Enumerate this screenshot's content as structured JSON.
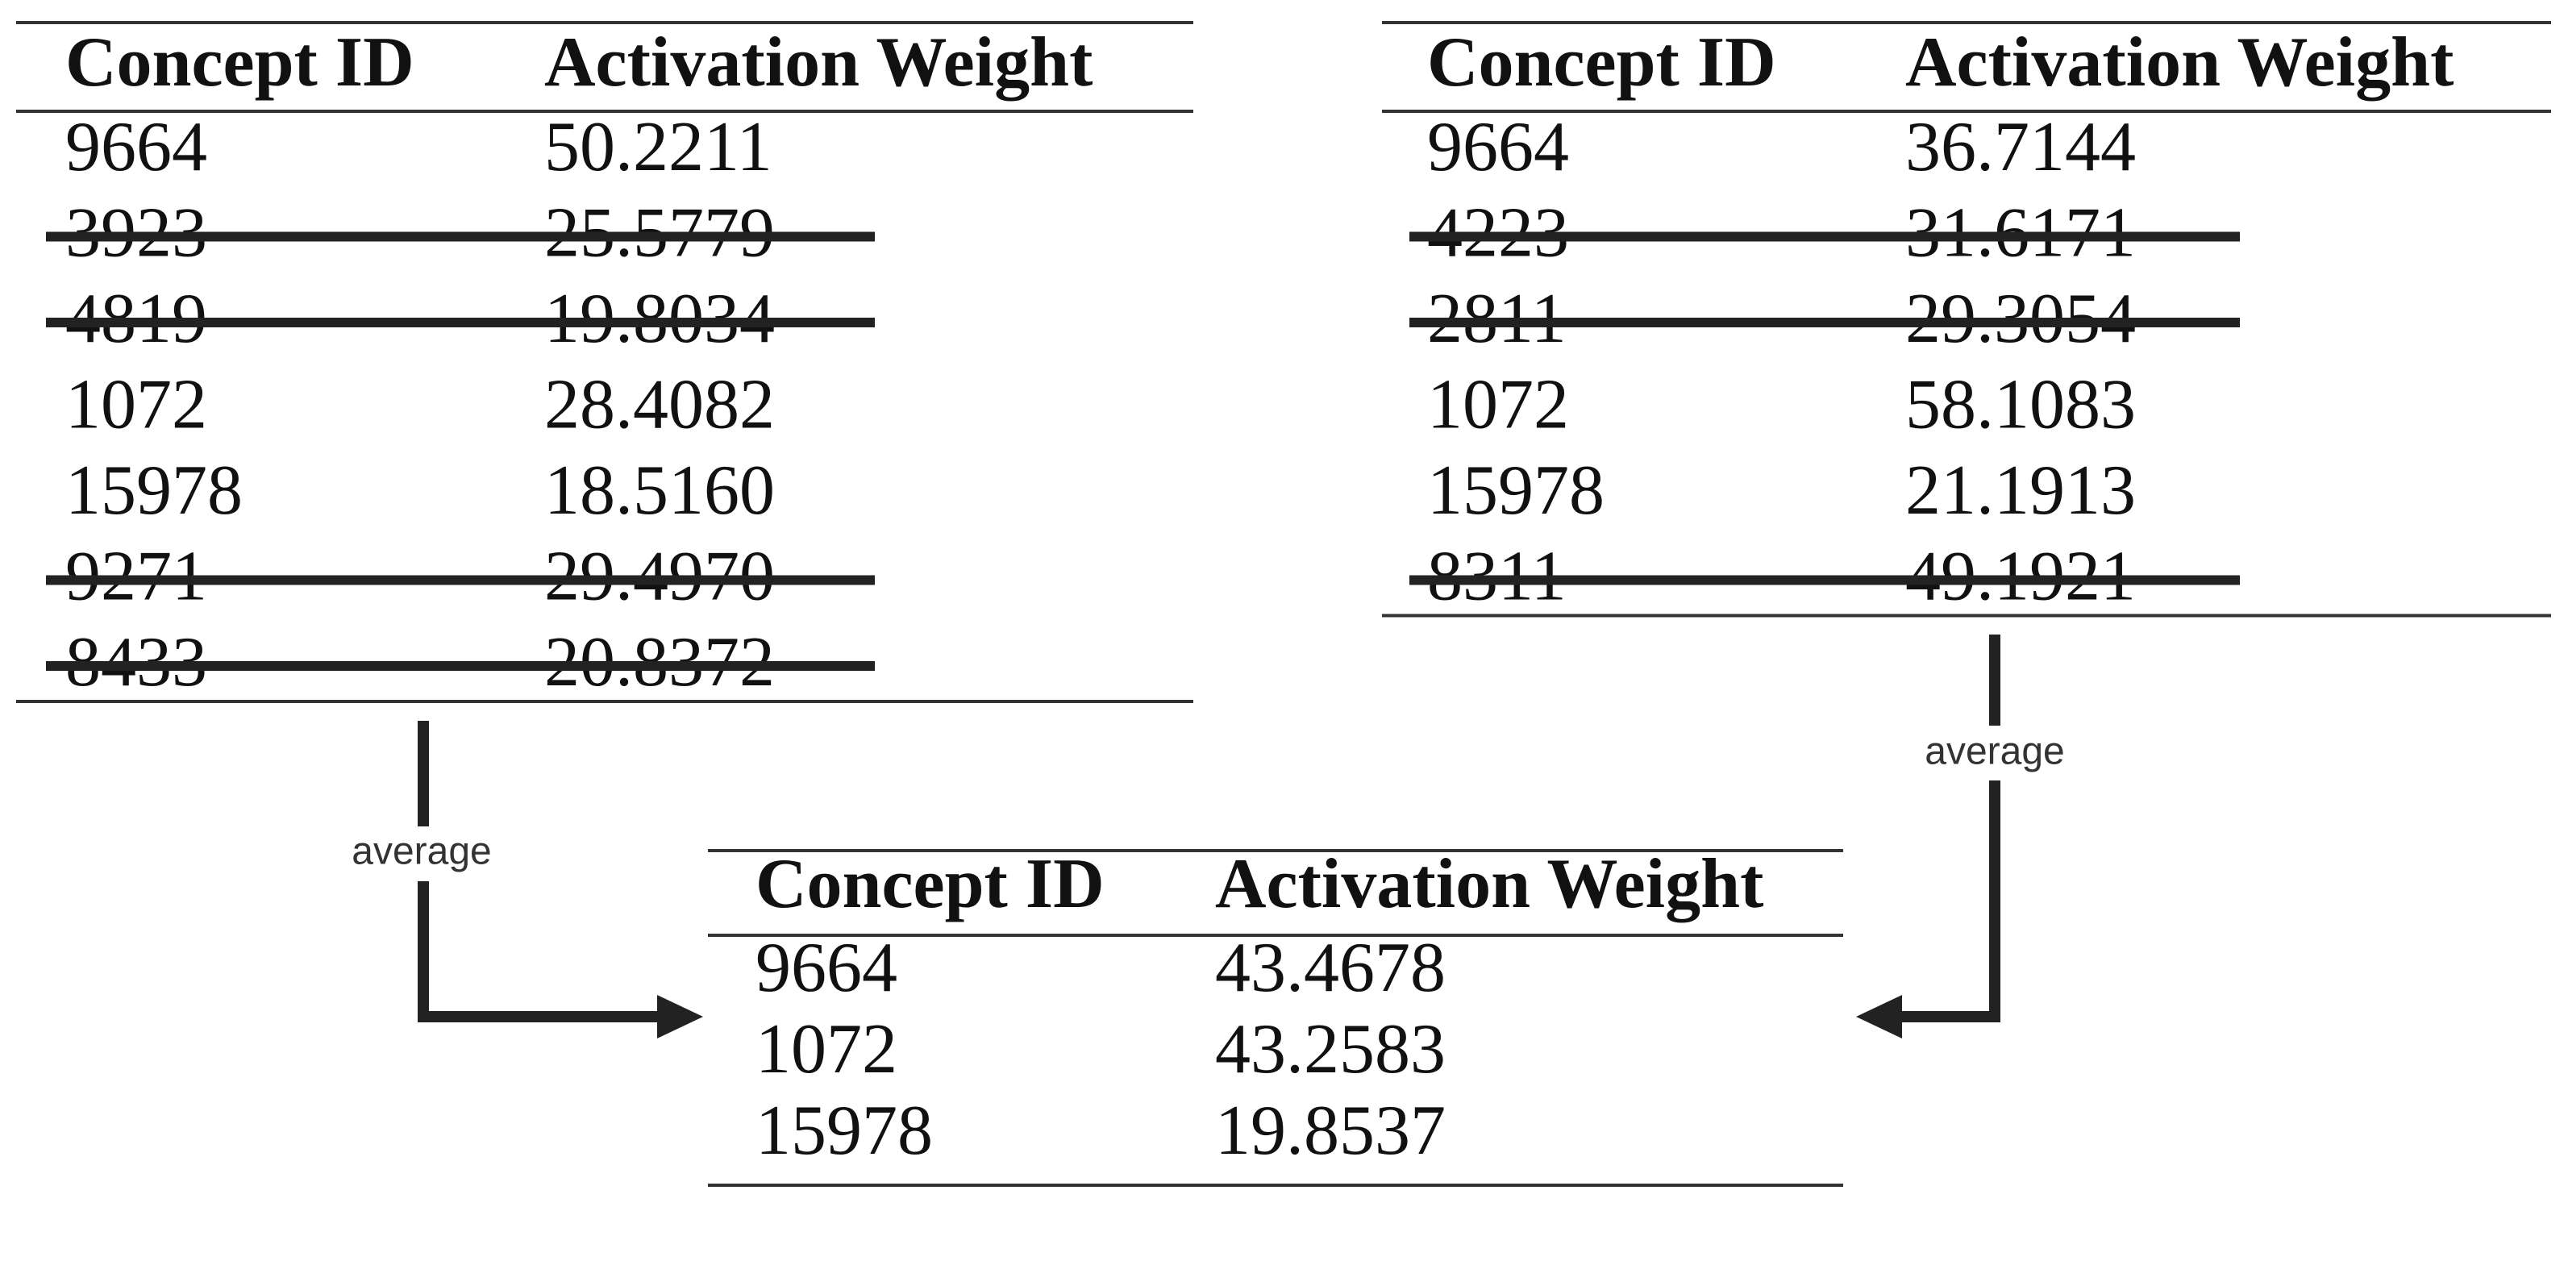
{
  "tables": [
    {
      "header": [
        "Concept ID",
        "Activation Weight"
      ],
      "rows": [
        {
          "cells": [
            "9664",
            "50.2211"
          ],
          "struck": false
        },
        {
          "cells": [
            "3923",
            "25.5779"
          ],
          "struck": true
        },
        {
          "cells": [
            "4819",
            "19.8034"
          ],
          "struck": true
        },
        {
          "cells": [
            "1072",
            "28.4082"
          ],
          "struck": false
        },
        {
          "cells": [
            "15978",
            "18.5160"
          ],
          "struck": false
        },
        {
          "cells": [
            "9271",
            "29.4970"
          ],
          "struck": true
        },
        {
          "cells": [
            "8433",
            "20.8372"
          ],
          "struck": true
        }
      ]
    },
    {
      "header": [
        "Concept ID",
        "Activation Weight"
      ],
      "rows": [
        {
          "cells": [
            "9664",
            "36.7144"
          ],
          "struck": false
        },
        {
          "cells": [
            "4223",
            "31.6171"
          ],
          "struck": true
        },
        {
          "cells": [
            "2811",
            "29.3054"
          ],
          "struck": true
        },
        {
          "cells": [
            "1072",
            "58.1083"
          ],
          "struck": false
        },
        {
          "cells": [
            "15978",
            "21.1913"
          ],
          "struck": false
        },
        {
          "cells": [
            "8311",
            "49.1921"
          ],
          "struck": true
        }
      ]
    },
    {
      "header": [
        "Concept ID",
        "Activation Weight"
      ],
      "rows": [
        {
          "cells": [
            "9664",
            "43.4678"
          ],
          "struck": false
        },
        {
          "cells": [
            "1072",
            "43.2583"
          ],
          "struck": false
        },
        {
          "cells": [
            "15978",
            "19.8537"
          ],
          "struck": false
        }
      ]
    }
  ],
  "arrows": [
    {
      "label": "average"
    },
    {
      "label": "average"
    }
  ]
}
